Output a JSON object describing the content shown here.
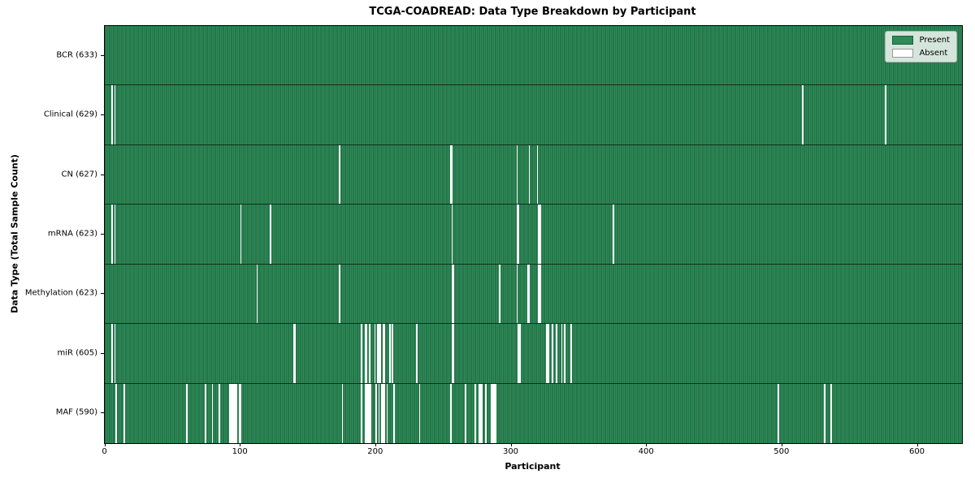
{
  "chart_data": {
    "type": "heatmap",
    "title": "TCGA-COADREAD: Data Type Breakdown by Participant",
    "xlabel": "Participant",
    "ylabel": "Data Type (Total Sample Count)",
    "x_range": [
      0,
      633
    ],
    "x_ticks": [
      0,
      100,
      200,
      300,
      400,
      500,
      600
    ],
    "n_participants": 633,
    "grid": false,
    "legend_position": "upper right",
    "legend": {
      "present": "Present",
      "absent": "Absent"
    },
    "colors": {
      "present": "#2e8b57",
      "present_edge": "#1f5f3e",
      "absent": "#ffffff",
      "legend_bg": "#ececec",
      "spine": "#000000"
    },
    "rows": [
      {
        "label": "BCR (633)",
        "data_type": "BCR",
        "total_samples": 633,
        "absent_participants": []
      },
      {
        "label": "Clinical (629)",
        "data_type": "Clinical",
        "total_samples": 629,
        "absent_participants": [
          5,
          7,
          515,
          576
        ]
      },
      {
        "label": "CN (627)",
        "data_type": "CN",
        "total_samples": 627,
        "absent_participants": [
          173,
          255,
          256,
          304,
          313,
          319
        ]
      },
      {
        "label": "mRNA (623)",
        "data_type": "mRNA",
        "total_samples": 623,
        "absent_participants": [
          5,
          7,
          100,
          122,
          256,
          304,
          305,
          320,
          321,
          375
        ]
      },
      {
        "label": "Methylation (623)",
        "data_type": "Methylation",
        "total_samples": 623,
        "absent_participants": [
          112,
          173,
          256,
          257,
          291,
          304,
          312,
          313,
          320,
          321
        ]
      },
      {
        "label": "miR (605)",
        "data_type": "miR",
        "total_samples": 605,
        "absent_participants": [
          5,
          7,
          139,
          140,
          189,
          192,
          193,
          195,
          199,
          201,
          202,
          203,
          205,
          206,
          210,
          212,
          230,
          256,
          257,
          305,
          306,
          326,
          327,
          330,
          333,
          337,
          339,
          344
        ]
      },
      {
        "label": "MAF (590)",
        "data_type": "MAF",
        "total_samples": 590,
        "absent_participants": [
          8,
          14,
          60,
          74,
          79,
          84,
          92,
          93,
          94,
          95,
          96,
          97,
          99,
          100,
          175,
          189,
          192,
          193,
          194,
          195,
          196,
          200,
          202,
          204,
          205,
          206,
          208,
          213,
          232,
          255,
          266,
          273,
          276,
          277,
          278,
          281,
          285,
          286,
          287,
          288,
          497,
          531,
          536
        ]
      }
    ]
  }
}
